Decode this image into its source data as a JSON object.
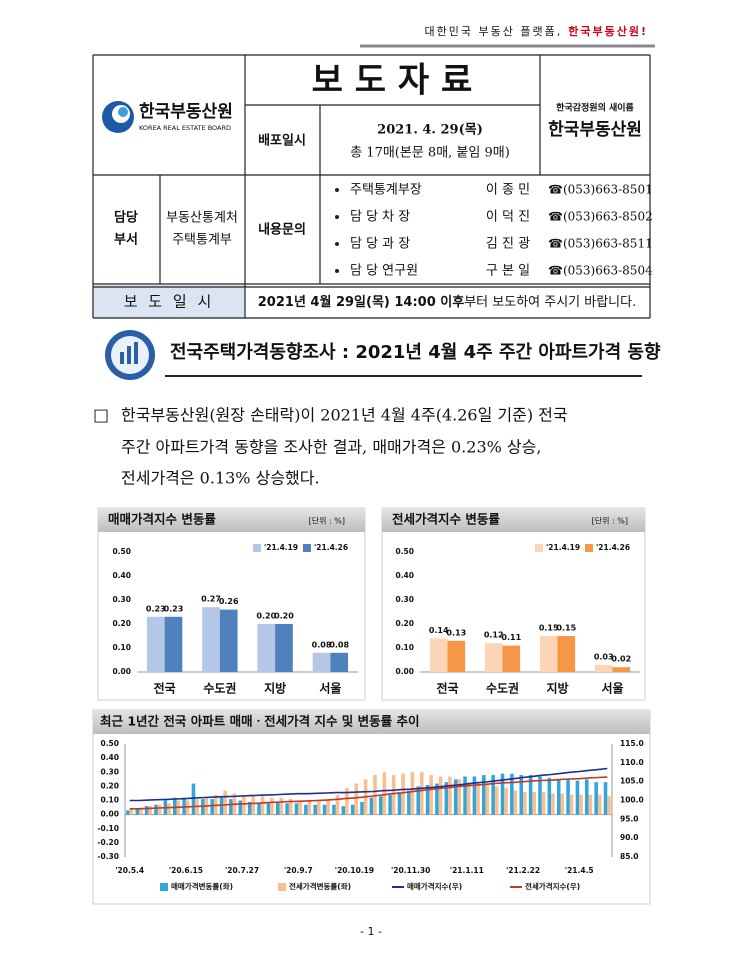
{
  "header": {
    "tagline": "대한민국 부동산 플랫폼,",
    "tagline_emphasis": "한국부동산원!"
  },
  "logo": {
    "name": "한국부동산원",
    "sub": "KOREA REAL ESTATE BOARD"
  },
  "title": "보 도 자 료",
  "right_logo": {
    "sub": "한국감정원의 새이름",
    "name": "한국부동산원"
  },
  "release": {
    "label": "배포일시",
    "date": "2021. 4. 29(목)",
    "pages": "총 17매(본문 8매, 붙임 9매)"
  },
  "dept": {
    "label": [
      "담당",
      "부서"
    ],
    "name": [
      "부동산통계처",
      "주택통계부"
    ]
  },
  "contact": {
    "label": "내용문의",
    "people": [
      {
        "title": "주택통계부장",
        "name": "이 종 민",
        "phone": "☎(053)663-8501"
      },
      {
        "title": "담 당 차 장",
        "name": "이 덕 진",
        "phone": "☎(053)663-8502"
      },
      {
        "title": "담 당 과 장",
        "name": "김 진 광",
        "phone": "☎(053)663-8511"
      },
      {
        "title": "담 당 연구원",
        "name": "구 본 일",
        "phone": "☎(053)663-8504"
      }
    ]
  },
  "embargo": {
    "label": "보 도 일 시",
    "time": "2021년 4월 29일(목) 14:00 이후",
    "text": "부터 보도하여 주시기 바랍니다."
  },
  "heading": "전국주택가격동향조사 : 2021년 4월 4주 주간 아파트가격 동향",
  "paragraph": {
    "marker": "□",
    "lines": [
      "한국부동산원(원장 손태락)이 2021년 4월 4주(4.26일 기준) 전국",
      "주간 아파트가격 동향을 조사한 결과, 매매가격은 0.23% 상승,",
      "전세가격은 0.13% 상승했다."
    ]
  },
  "chart_data": [
    {
      "type": "bar",
      "title": "매매가격지수 변동률",
      "unit": "[단위 : %]",
      "categories": [
        "전국",
        "수도권",
        "지방",
        "서울"
      ],
      "series": [
        {
          "name": "'21.4.19",
          "color": "#b4c7e7",
          "values": [
            0.23,
            0.27,
            0.2,
            0.08
          ],
          "value_labels": [
            "0.23",
            "0.27",
            "0.20",
            "0.08"
          ]
        },
        {
          "name": "'21.4.26",
          "color": "#4f81bd",
          "values": [
            0.23,
            0.26,
            0.2,
            0.08
          ],
          "value_labels": [
            "0.23",
            "0.26",
            "0.20",
            "0.08"
          ]
        }
      ],
      "ylim": [
        0,
        0.5
      ],
      "yticks": [
        {
          "value": 0,
          "label": "0.00"
        },
        {
          "value": 0.1,
          "label": "0.10"
        },
        {
          "value": 0.2,
          "label": "0.20"
        },
        {
          "value": 0.3,
          "label": "0.30"
        },
        {
          "value": 0.4,
          "label": "0.40"
        },
        {
          "value": 0.5,
          "label": "0.50"
        }
      ],
      "grid": false,
      "legend": "upper right"
    },
    {
      "type": "bar",
      "title": "전세가격지수 변동률",
      "unit": "[단위 : %]",
      "categories": [
        "전국",
        "수도권",
        "지방",
        "서울"
      ],
      "series": [
        {
          "name": "'21.4.19",
          "color": "#fbd5b5",
          "values": [
            0.14,
            0.12,
            0.15,
            0.03
          ],
          "value_labels": [
            "0.14",
            "0.12",
            "0.15",
            "0.03"
          ]
        },
        {
          "name": "'21.4.26",
          "color": "#f79646",
          "values": [
            0.13,
            0.11,
            0.15,
            0.02
          ],
          "value_labels": [
            "0.13",
            "0.11",
            "0.15",
            "0.02"
          ]
        }
      ],
      "ylim": [
        0,
        0.5
      ],
      "yticks": [
        {
          "value": 0,
          "label": "0.00"
        },
        {
          "value": 0.1,
          "label": "0.10"
        },
        {
          "value": 0.2,
          "label": "0.20"
        },
        {
          "value": 0.3,
          "label": "0.30"
        },
        {
          "value": 0.4,
          "label": "0.40"
        },
        {
          "value": 0.5,
          "label": "0.50"
        }
      ],
      "grid": false,
      "legend": "upper right"
    },
    {
      "type": "combo",
      "title": "최근 1년간 전국 아파트 매매ㆍ전세가격 지수 및 변동률 추이",
      "categories": [
        "'20.5.4",
        null,
        null,
        null,
        null,
        null,
        "'20.6.15",
        null,
        null,
        null,
        null,
        null,
        "'20.7.27",
        null,
        null,
        null,
        null,
        null,
        "'20.9.7",
        null,
        null,
        null,
        null,
        null,
        "'20.10.19",
        null,
        null,
        null,
        null,
        null,
        "'20.11.30",
        null,
        null,
        null,
        null,
        null,
        "'21.1.11",
        null,
        null,
        null,
        null,
        null,
        "'21.2.22",
        null,
        null,
        null,
        null,
        null,
        "'21.4.5",
        null,
        null,
        null
      ],
      "series": [
        {
          "name": "매매가격변동률(좌)",
          "type": "bar",
          "color": "#31a6dc",
          "values": [
            0.03,
            0.04,
            0.06,
            0.07,
            0.1,
            0.12,
            0.12,
            0.22,
            0.11,
            0.11,
            0.12,
            0.11,
            0.1,
            0.09,
            0.08,
            0.09,
            0.09,
            0.08,
            0.08,
            0.07,
            0.07,
            0.07,
            0.07,
            0.06,
            0.07,
            0.09,
            0.12,
            0.13,
            0.14,
            0.16,
            0.17,
            0.2,
            0.21,
            0.22,
            0.23,
            0.25,
            0.27,
            0.27,
            0.28,
            0.28,
            0.29,
            0.29,
            0.28,
            0.28,
            0.27,
            0.26,
            0.25,
            0.25,
            0.24,
            0.25,
            0.23,
            0.23
          ]
        },
        {
          "name": "전세가격변동률(좌)",
          "type": "bar",
          "color": "#f9bf8f",
          "values": [
            0.04,
            0.05,
            0.06,
            0.07,
            0.08,
            0.1,
            0.1,
            0.11,
            0.12,
            0.14,
            0.17,
            0.15,
            0.14,
            0.13,
            0.13,
            0.12,
            0.12,
            0.11,
            0.1,
            0.1,
            0.1,
            0.11,
            0.14,
            0.19,
            0.22,
            0.25,
            0.28,
            0.3,
            0.28,
            0.29,
            0.3,
            0.3,
            0.28,
            0.27,
            0.27,
            0.25,
            0.23,
            0.23,
            0.21,
            0.2,
            0.19,
            0.17,
            0.16,
            0.16,
            0.16,
            0.15,
            0.15,
            0.14,
            0.14,
            0.14,
            0.14,
            0.13
          ]
        },
        {
          "name": "매매가격지수(우)",
          "type": "line",
          "axis": "y2",
          "color": "#1f2d8f",
          "values": [
            100.0,
            100.0,
            100.1,
            100.2,
            100.3,
            100.4,
            100.5,
            100.7,
            100.8,
            100.9,
            101.0,
            101.1,
            101.2,
            101.3,
            101.4,
            101.5,
            101.6,
            101.7,
            101.8,
            101.8,
            101.9,
            102.0,
            102.1,
            102.1,
            102.2,
            102.3,
            102.4,
            102.6,
            102.7,
            102.9,
            103.0,
            103.2,
            103.4,
            103.6,
            103.9,
            104.1,
            104.4,
            104.7,
            104.9,
            105.2,
            105.5,
            105.8,
            106.1,
            106.4,
            106.7,
            106.9,
            107.2,
            107.5,
            107.7,
            108.0,
            108.2,
            108.5
          ]
        },
        {
          "name": "전세가격지수(우)",
          "type": "line",
          "axis": "y2",
          "color": "#c0392b",
          "values": [
            97.8,
            97.8,
            97.9,
            98.0,
            98.1,
            98.2,
            98.3,
            98.4,
            98.5,
            98.7,
            98.8,
            99.0,
            99.1,
            99.2,
            99.3,
            99.5,
            99.6,
            99.7,
            99.8,
            99.9,
            100.0,
            100.1,
            100.3,
            100.5,
            100.7,
            100.9,
            101.2,
            101.5,
            101.8,
            102.0,
            102.3,
            102.6,
            102.9,
            103.2,
            103.4,
            103.7,
            103.9,
            104.1,
            104.3,
            104.5,
            104.7,
            104.8,
            105.0,
            105.2,
            105.3,
            105.4,
            105.6,
            105.7,
            105.8,
            106.0,
            106.1,
            106.2
          ]
        }
      ],
      "ylim": [
        -0.3,
        0.5
      ],
      "yticks": [
        {
          "value": -0.3,
          "label": "-0.30"
        },
        {
          "value": -0.2,
          "label": "-0.20"
        },
        {
          "value": -0.1,
          "label": "-0.10"
        },
        {
          "value": 0,
          "label": "0.00"
        },
        {
          "value": 0.1,
          "label": "0.10"
        },
        {
          "value": 0.2,
          "label": "0.20"
        },
        {
          "value": 0.3,
          "label": "0.30"
        },
        {
          "value": 0.4,
          "label": "0.40"
        },
        {
          "value": 0.5,
          "label": "0.50"
        }
      ],
      "y2lim": [
        85,
        115
      ],
      "y2ticks": [
        {
          "value": 85,
          "label": "85.0"
        },
        {
          "value": 90,
          "label": "90.0"
        },
        {
          "value": 95,
          "label": "95.0"
        },
        {
          "value": 100,
          "label": "100.0"
        },
        {
          "value": 105,
          "label": "105.0"
        },
        {
          "value": 110,
          "label": "110.0"
        },
        {
          "value": 115,
          "label": "115.0"
        }
      ],
      "grid": false,
      "legend": "bottom"
    }
  ],
  "footer": "- 1 -"
}
